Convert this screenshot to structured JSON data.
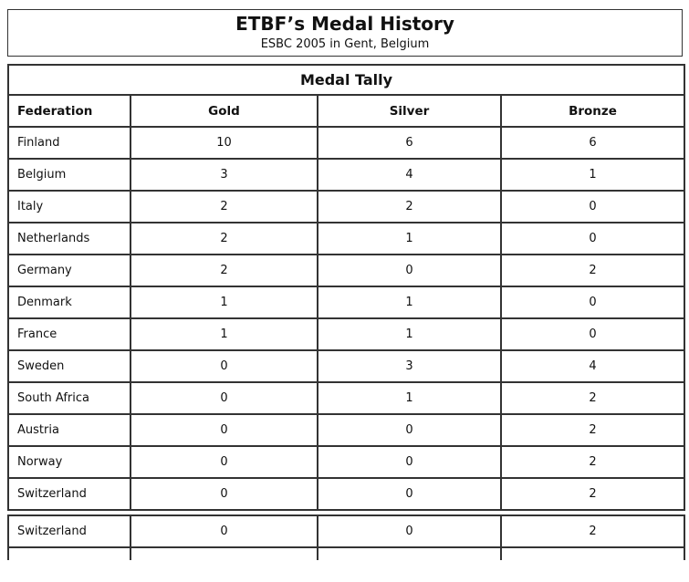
{
  "page": {
    "title": "ETBF’s Medal History",
    "subtitle": "ESBC 2005 in Gent, Belgium"
  },
  "table": {
    "section_title": "Medal Tally",
    "columns": [
      "Federation",
      "Gold",
      "Silver",
      "Bronze"
    ],
    "rows": [
      {
        "federation": "Finland",
        "gold": "10",
        "silver": "6",
        "bronze": "6"
      },
      {
        "federation": "Belgium",
        "gold": "3",
        "silver": "4",
        "bronze": "1"
      },
      {
        "federation": "Italy",
        "gold": "2",
        "silver": "2",
        "bronze": "0"
      },
      {
        "federation": "Netherlands",
        "gold": "2",
        "silver": "1",
        "bronze": "0"
      },
      {
        "federation": "Germany",
        "gold": "2",
        "silver": "0",
        "bronze": "2"
      },
      {
        "federation": "Denmark",
        "gold": "1",
        "silver": "1",
        "bronze": "0"
      },
      {
        "federation": "France",
        "gold": "1",
        "silver": "1",
        "bronze": "0"
      },
      {
        "federation": "Sweden",
        "gold": "0",
        "silver": "3",
        "bronze": "4"
      },
      {
        "federation": "South Africa",
        "gold": "0",
        "silver": "1",
        "bronze": "2"
      },
      {
        "federation": "Austria",
        "gold": "0",
        "silver": "0",
        "bronze": "2"
      },
      {
        "federation": "Norway",
        "gold": "0",
        "silver": "0",
        "bronze": "2"
      },
      {
        "federation": "Switzerland",
        "gold": "0",
        "silver": "0",
        "bronze": "2"
      }
    ]
  },
  "overflow_rows": [
    {
      "federation": "Switzerland",
      "gold": "0",
      "silver": "0",
      "bronze": "2"
    }
  ],
  "colors": {
    "border": "#333333",
    "text": "#111111",
    "bg": "#ffffff"
  }
}
